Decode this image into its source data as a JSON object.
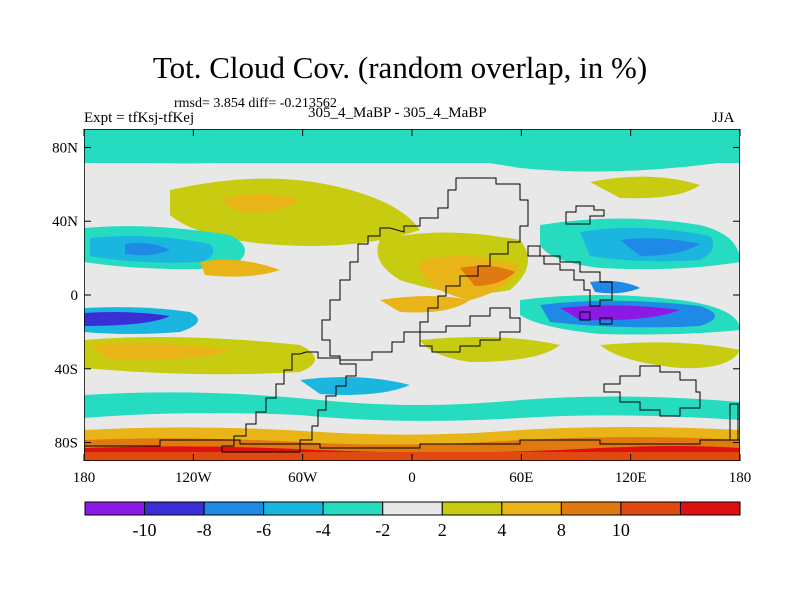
{
  "header": {
    "title": "Tot. Cloud Cov. (random overlap, in %)",
    "stats": "rmsd= 3.854 diff= -0.213562",
    "left_label": "Expt = tfKsj-tfKej",
    "center_label": "305_4_MaBP - 305_4_MaBP",
    "right_label": "JJA"
  },
  "map": {
    "lat_range": [
      -90,
      90
    ],
    "lon_range": [
      -180,
      180
    ],
    "lat_ticks": [
      "80N",
      "40N",
      "0",
      "40S",
      "80S"
    ],
    "lon_ticks": [
      "180",
      "120W",
      "60W",
      "0",
      "60E",
      "120E",
      "180"
    ],
    "lat_tick_values": [
      80,
      40,
      0,
      -40,
      -80
    ],
    "lon_tick_values": [
      -180,
      -120,
      -60,
      0,
      60,
      120,
      180
    ]
  },
  "colorbar": {
    "labels": [
      "-10",
      "-8",
      "-6",
      "-4",
      "-2",
      "2",
      "4",
      "8",
      "10"
    ],
    "colors": [
      "#8c1ae6",
      "#3a2fd6",
      "#1e8ae6",
      "#1ab6e0",
      "#26dcc0",
      "#e8e8e8",
      "#c8cc10",
      "#e8b418",
      "#e07a10",
      "#e04a10",
      "#e01010"
    ]
  }
}
